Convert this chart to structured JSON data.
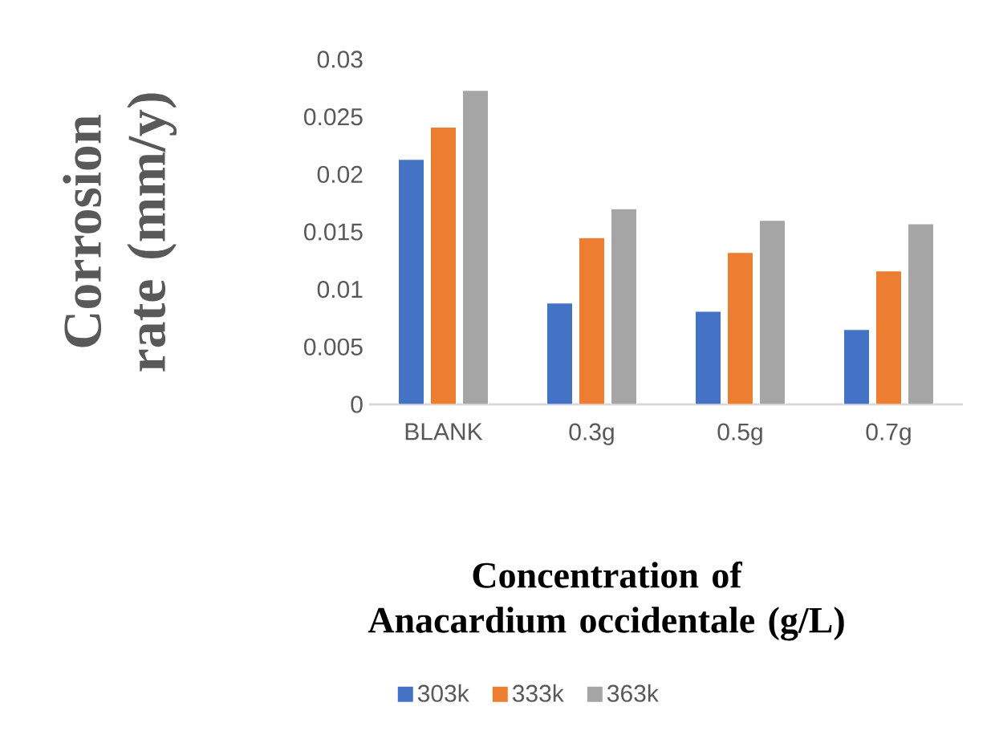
{
  "chart_data": {
    "type": "bar",
    "xlabel": "Concentration of Anacardium occidentale (g/L)",
    "ylabel": "Corrosion rate (mm/y)",
    "categories": [
      "BLANK",
      "0.3g",
      "0.5g",
      "0.7g"
    ],
    "series": [
      {
        "name": "303k",
        "color": "#4472c4",
        "values": [
          0.0213,
          0.0088,
          0.0081,
          0.0065
        ]
      },
      {
        "name": "333k",
        "color": "#ed7d31",
        "values": [
          0.0241,
          0.0145,
          0.0132,
          0.0116
        ]
      },
      {
        "name": "363k",
        "color": "#a5a5a5",
        "values": [
          0.0273,
          0.017,
          0.016,
          0.0157
        ]
      }
    ],
    "ylim": [
      0,
      0.03
    ],
    "yticks": [
      0,
      0.005,
      0.01,
      0.015,
      0.02,
      0.025,
      0.03
    ],
    "legend": "bottom"
  }
}
